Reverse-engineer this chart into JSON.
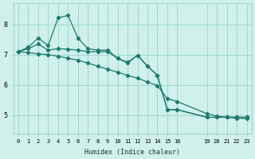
{
  "xlabel": "Humidex (Indice chaleur)",
  "background_color": "#cff0eb",
  "grid_color": "#9ed8d0",
  "line_color": "#1e7a6e",
  "ylim": [
    4.4,
    8.7
  ],
  "xlim": [
    -0.5,
    23.5
  ],
  "yticks": [
    5,
    6,
    7,
    8
  ],
  "x_ticks": [
    0,
    1,
    2,
    3,
    4,
    5,
    6,
    7,
    8,
    9,
    10,
    11,
    12,
    13,
    14,
    15,
    16,
    19,
    20,
    21,
    22,
    23
  ],
  "series": [
    {
      "x": [
        0,
        1,
        2,
        3,
        4,
        5,
        6,
        7,
        8,
        9,
        10,
        11,
        12,
        13,
        14,
        15,
        16,
        19,
        20,
        21,
        22,
        23
      ],
      "y": [
        7.1,
        7.25,
        7.55,
        7.3,
        8.22,
        8.3,
        7.55,
        7.2,
        7.15,
        7.15,
        6.88,
        6.72,
        6.98,
        6.62,
        6.32,
        5.18,
        5.18,
        4.93,
        4.93,
        4.93,
        4.93,
        4.93
      ]
    },
    {
      "x": [
        0,
        1,
        2,
        3,
        4,
        5,
        6,
        7,
        8,
        9,
        10,
        11,
        12,
        13,
        14,
        15,
        16,
        19,
        20,
        21,
        22,
        23
      ],
      "y": [
        7.1,
        7.2,
        7.35,
        7.15,
        7.2,
        7.18,
        7.15,
        7.1,
        7.1,
        7.1,
        6.88,
        6.75,
        6.98,
        6.62,
        6.32,
        5.18,
        5.18,
        4.93,
        4.93,
        4.93,
        4.93,
        4.93
      ]
    },
    {
      "x": [
        0,
        1,
        2,
        3,
        4,
        5,
        6,
        7,
        8,
        9,
        10,
        11,
        12,
        13,
        14,
        15,
        16,
        19,
        20,
        21,
        22,
        23
      ],
      "y": [
        7.1,
        7.07,
        7.03,
        7.0,
        6.95,
        6.88,
        6.82,
        6.72,
        6.62,
        6.52,
        6.42,
        6.32,
        6.22,
        6.1,
        5.98,
        5.55,
        5.45,
        5.05,
        4.97,
        4.93,
        4.9,
        4.88
      ]
    }
  ]
}
